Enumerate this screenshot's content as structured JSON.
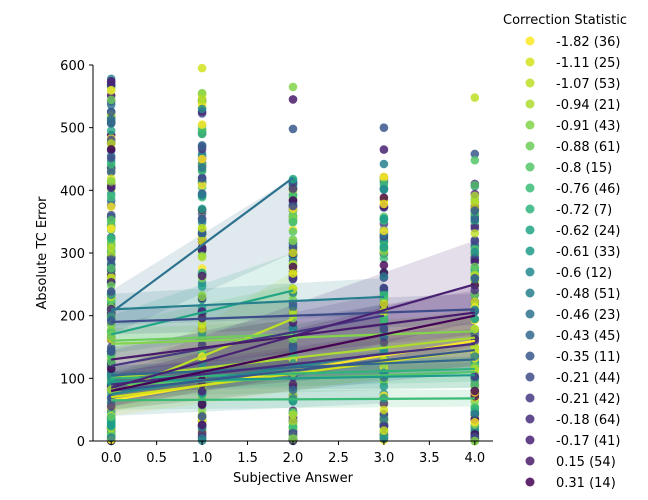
{
  "chart_data": {
    "type": "scatter",
    "xlabel": "Subjective Answer",
    "ylabel": "Absolute TC Error",
    "xlim": [
      -0.2,
      4.2
    ],
    "ylim": [
      0,
      600
    ],
    "xticks": [
      "0.0",
      "0.5",
      "1.0",
      "1.5",
      "2.0",
      "2.5",
      "3.0",
      "3.5",
      "4.0"
    ],
    "yticks": [
      "0",
      "100",
      "200",
      "300",
      "400",
      "500",
      "600"
    ],
    "legend": {
      "title": "Correction Statistic",
      "placement": "outside-right"
    },
    "series": [
      {
        "name": "-1.82 (36)",
        "color": "#fde725",
        "line": {
          "x": [
            0,
            4
          ],
          "y": [
            65,
            160
          ]
        },
        "band": [
          [
            40,
            90
          ],
          [
            120,
            200
          ]
        ]
      },
      {
        "name": "-1.11 (25)",
        "color": "#d2e21b",
        "line": {
          "x": [
            0,
            4
          ],
          "y": [
            70,
            145
          ]
        },
        "band": [
          [
            50,
            90
          ],
          [
            115,
            175
          ]
        ]
      },
      {
        "name": "-1.07 (53)",
        "color": "#bddf26",
        "line": {
          "x": [
            0,
            2
          ],
          "y": [
            75,
            195
          ]
        },
        "band": [
          [
            45,
            100
          ],
          [
            120,
            270
          ]
        ]
      },
      {
        "name": "-0.94 (21)",
        "color": "#addc30",
        "line": {
          "x": [
            0,
            4
          ],
          "y": [
            100,
            165
          ]
        },
        "band": [
          [
            70,
            130
          ],
          [
            120,
            210
          ]
        ]
      },
      {
        "name": "-0.91 (43)",
        "color": "#84d44b",
        "line": {
          "x": [
            0,
            4
          ],
          "y": [
            155,
            175
          ]
        },
        "band": [
          [
            130,
            180
          ],
          [
            150,
            200
          ]
        ]
      },
      {
        "name": "-0.88 (61)",
        "color": "#6ccd5a",
        "line": {
          "x": [
            0,
            2
          ],
          "y": [
            160,
            170
          ]
        },
        "band": [
          [
            135,
            185
          ],
          [
            100,
            250
          ]
        ]
      },
      {
        "name": "-0.8 (15)",
        "color": "#52c569",
        "line": {
          "x": [
            0,
            4
          ],
          "y": [
            90,
            110
          ]
        },
        "band": [
          [
            70,
            110
          ],
          [
            85,
            135
          ]
        ]
      },
      {
        "name": "-0.76 (46)",
        "color": "#3bbb75",
        "line": {
          "x": [
            0,
            4
          ],
          "y": [
            65,
            68
          ]
        },
        "band": [
          [
            50,
            80
          ],
          [
            55,
            82
          ]
        ]
      },
      {
        "name": "-0.72 (7)",
        "color": "#2fb47c",
        "line": {
          "x": [
            0,
            4
          ],
          "y": [
            100,
            115
          ]
        },
        "band": [
          [
            80,
            120
          ],
          [
            95,
            135
          ]
        ]
      },
      {
        "name": "-0.62 (24)",
        "color": "#21a685",
        "line": {
          "x": [
            0,
            2
          ],
          "y": [
            170,
            240
          ]
        },
        "band": [
          [
            140,
            200
          ],
          [
            180,
            300
          ]
        ]
      },
      {
        "name": "-0.61 (33)",
        "color": "#1e9b8a",
        "line": {
          "x": [
            0,
            4
          ],
          "y": [
            95,
            105
          ]
        },
        "band": [
          [
            80,
            110
          ],
          [
            85,
            125
          ]
        ]
      },
      {
        "name": "-0.6 (12)",
        "color": "#23898e",
        "line": {
          "x": [
            0,
            3
          ],
          "y": [
            75,
            140
          ]
        },
        "band": [
          [
            40,
            110
          ],
          [
            60,
            220
          ]
        ]
      },
      {
        "name": "-0.48 (51)",
        "color": "#277f8e",
        "line": {
          "x": [
            0,
            3
          ],
          "y": [
            210,
            230
          ]
        },
        "band": [
          [
            185,
            235
          ],
          [
            200,
            260
          ]
        ]
      },
      {
        "name": "-0.46 (23)",
        "color": "#2c728e",
        "line": {
          "x": [
            0,
            2
          ],
          "y": [
            205,
            420
          ]
        },
        "band": [
          [
            170,
            240
          ],
          [
            300,
            420
          ]
        ]
      },
      {
        "name": "-0.43 (45)",
        "color": "#31688e",
        "line": {
          "x": [
            0,
            4
          ],
          "y": [
            105,
            130
          ]
        },
        "band": [
          [
            90,
            120
          ],
          [
            110,
            150
          ]
        ]
      },
      {
        "name": "-0.35 (11)",
        "color": "#38588c",
        "line": {
          "x": [
            0,
            4
          ],
          "y": [
            80,
            145
          ]
        },
        "band": [
          [
            50,
            110
          ],
          [
            110,
            180
          ]
        ]
      },
      {
        "name": "-0.21 (44)",
        "color": "#3e4c8a",
        "line": {
          "x": [
            0,
            4
          ],
          "y": [
            190,
            210
          ]
        },
        "band": [
          [
            170,
            210
          ],
          [
            185,
            235
          ]
        ]
      },
      {
        "name": "-0.21 (42)",
        "color": "#453781",
        "line": {
          "x": [
            0,
            3
          ],
          "y": [
            120,
            200
          ]
        },
        "band": [
          [
            95,
            145
          ],
          [
            165,
            235
          ]
        ]
      },
      {
        "name": "-0.18 (64)",
        "color": "#472d7b",
        "line": {
          "x": [
            0,
            4
          ],
          "y": [
            90,
            155
          ]
        },
        "band": [
          [
            70,
            110
          ],
          [
            120,
            190
          ]
        ]
      },
      {
        "name": "-0.17 (41)",
        "color": "#482173",
        "line": {
          "x": [
            0,
            4
          ],
          "y": [
            85,
            250
          ]
        },
        "band": [
          [
            55,
            115
          ],
          [
            190,
            320
          ]
        ]
      },
      {
        "name": "0.15 (54)",
        "color": "#481a6c",
        "line": {
          "x": [
            0,
            4
          ],
          "y": [
            130,
            205
          ]
        },
        "band": [
          [
            110,
            150
          ],
          [
            170,
            240
          ]
        ]
      },
      {
        "name": "0.31 (14)",
        "color": "#440154",
        "line": {
          "x": [
            0,
            4
          ],
          "y": [
            80,
            200
          ]
        },
        "band": [
          [
            55,
            105
          ],
          [
            150,
            250
          ]
        ]
      }
    ],
    "points": [
      {
        "x": 0,
        "ys": [
          0,
          600
        ],
        "dense": true
      },
      {
        "x": 1,
        "ys": [
          0,
          560
        ],
        "dense": true,
        "outliers": [
          595,
          555,
          545,
          530,
          505,
          490,
          470,
          450
        ]
      },
      {
        "x": 2,
        "ys": [
          0,
          420
        ],
        "dense": true,
        "outliers": [
          565,
          545,
          498,
          418,
          375,
          350
        ]
      },
      {
        "x": 3,
        "ys": [
          0,
          425
        ],
        "dense": true,
        "outliers": [
          500,
          465,
          442
        ]
      },
      {
        "x": 4,
        "ys": [
          0,
          415
        ],
        "dense": true,
        "outliers": [
          548,
          458,
          448
        ]
      }
    ]
  }
}
